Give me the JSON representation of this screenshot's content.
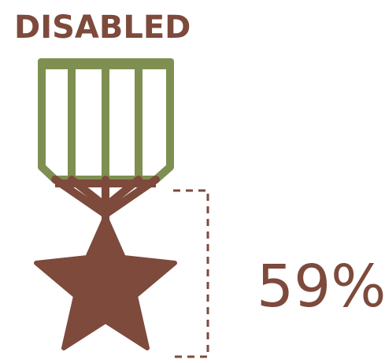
{
  "title": "DISABLED",
  "percentage_label": "59%",
  "percentage_value": 59,
  "icon": "military-medal-icon",
  "colors": {
    "brown": "#7d4a3c",
    "green": "#7f8f51",
    "background": "#ffffff"
  }
}
